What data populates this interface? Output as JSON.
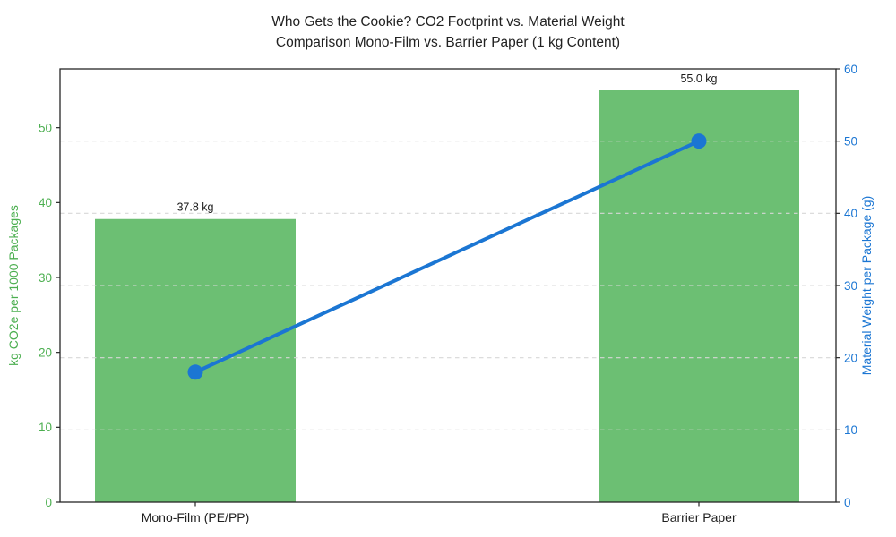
{
  "figure": {
    "title_line1": "Who Gets the Cookie? CO2 Footprint vs. Material Weight",
    "title_line2": "Comparison Mono-Film vs. Barrier Paper (1 kg Content)"
  },
  "chart_data": {
    "type": "combo_bar_line",
    "title": "Who Gets the Cookie? CO2 Footprint vs. Material Weight\nComparison Mono-Film vs. Barrier Paper (1 kg Content)",
    "categories": [
      "Mono-Film (PE/PP)",
      "Barrier Paper"
    ],
    "series": [
      {
        "name": "CO2 footprint per 1000 packages",
        "type": "bar",
        "axis": "left",
        "values": [
          37.8,
          55.0
        ],
        "data_labels": [
          "37.8 kg",
          "55.0 kg"
        ],
        "color": "#6cbf73"
      },
      {
        "name": "Material weight per package",
        "type": "line",
        "axis": "right",
        "values": [
          18,
          50
        ],
        "color": "#1b76d3"
      }
    ],
    "left_axis": {
      "label": "kg CO2e per 1000 Packages",
      "ticks": [
        0,
        10,
        20,
        30,
        40,
        50
      ],
      "range": [
        0,
        57.85
      ],
      "color": "#4caf50"
    },
    "right_axis": {
      "label": "Material Weight per Package (g)",
      "ticks": [
        0,
        10,
        20,
        30,
        40,
        50,
        60
      ],
      "range": [
        0,
        60
      ],
      "color": "#1b76d3"
    },
    "x_axis": {
      "tick_label_color": "#1f1f1f"
    },
    "grid": {
      "orientation": "horizontal",
      "aligned_to": "right_axis",
      "at_ticks": [
        10,
        20,
        30,
        40,
        50
      ],
      "style": "dashed",
      "color": "#d8d8d8"
    },
    "data_label_color": "#1a1a1a",
    "frame_color": "#262626",
    "legend": "none"
  }
}
